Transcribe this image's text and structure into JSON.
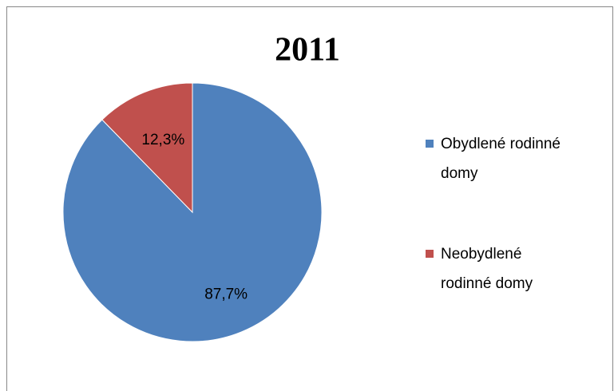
{
  "chart_data": {
    "type": "pie",
    "title": "2011",
    "categories": [
      "Obydlené rodinné domy",
      "Neobydlené rodinné domy"
    ],
    "values": [
      87.7,
      12.3
    ],
    "value_labels": [
      "87,7%",
      "12,3%"
    ],
    "colors": [
      "#4f81bd",
      "#c0504d"
    ],
    "legend": "right"
  }
}
